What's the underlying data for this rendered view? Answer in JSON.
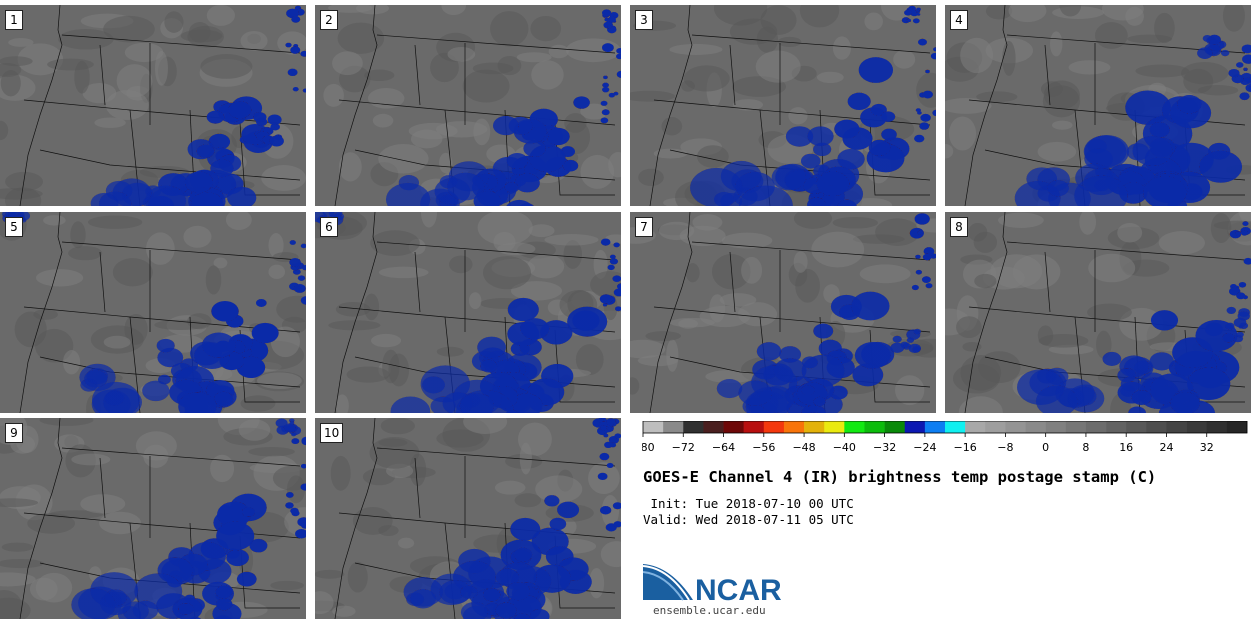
{
  "panels": [
    {
      "label": "1",
      "blobs": [
        [
          0.78,
          0.6,
          0.1,
          0.22,
          2.0
        ],
        [
          0.7,
          0.82,
          0.13,
          0.2,
          1.6
        ],
        [
          0.6,
          0.95,
          0.12,
          0.12,
          1.8
        ],
        [
          0.45,
          0.95,
          0.14,
          0.08,
          1.0
        ],
        [
          0.97,
          0.2,
          0.04,
          0.3,
          2.2
        ],
        [
          0.88,
          0.62,
          0.05,
          0.08,
          2.1
        ]
      ]
    },
    {
      "label": "2",
      "blobs": [
        [
          0.78,
          0.65,
          0.12,
          0.25,
          2.1
        ],
        [
          0.65,
          0.75,
          0.12,
          0.22,
          1.5
        ],
        [
          0.62,
          0.95,
          0.1,
          0.1,
          1.8
        ],
        [
          0.4,
          0.92,
          0.14,
          0.1,
          1.0
        ],
        [
          0.97,
          0.4,
          0.04,
          0.25,
          2.2
        ],
        [
          0.96,
          0.08,
          0.03,
          0.06,
          2.3
        ]
      ]
    },
    {
      "label": "3",
      "blobs": [
        [
          0.78,
          0.55,
          0.12,
          0.3,
          2.0
        ],
        [
          0.62,
          0.8,
          0.14,
          0.2,
          1.4
        ],
        [
          0.63,
          0.94,
          0.11,
          0.1,
          1.9
        ],
        [
          0.4,
          0.92,
          0.18,
          0.1,
          1.0
        ],
        [
          0.97,
          0.45,
          0.04,
          0.35,
          2.3
        ],
        [
          0.92,
          0.05,
          0.03,
          0.05,
          2.2
        ]
      ]
    },
    {
      "label": "4",
      "blobs": [
        [
          0.78,
          0.65,
          0.16,
          0.25,
          1.8
        ],
        [
          0.6,
          0.8,
          0.14,
          0.2,
          1.2
        ],
        [
          0.7,
          0.95,
          0.14,
          0.12,
          1.9
        ],
        [
          0.4,
          0.9,
          0.18,
          0.08,
          1.0
        ],
        [
          0.97,
          0.3,
          0.04,
          0.2,
          2.0
        ],
        [
          0.88,
          0.2,
          0.05,
          0.06,
          1.5
        ]
      ]
    },
    {
      "label": "5",
      "blobs": [
        [
          0.8,
          0.6,
          0.1,
          0.22,
          2.3
        ],
        [
          0.62,
          0.75,
          0.12,
          0.15,
          1.5
        ],
        [
          0.65,
          0.95,
          0.12,
          0.08,
          1.8
        ],
        [
          0.4,
          0.88,
          0.15,
          0.1,
          1.0
        ],
        [
          0.97,
          0.3,
          0.04,
          0.2,
          2.1
        ],
        [
          0.05,
          0.03,
          0.05,
          0.03,
          1.1
        ]
      ]
    },
    {
      "label": "6",
      "blobs": [
        [
          0.78,
          0.58,
          0.14,
          0.3,
          1.9
        ],
        [
          0.6,
          0.78,
          0.12,
          0.22,
          1.4
        ],
        [
          0.67,
          0.94,
          0.12,
          0.12,
          1.9
        ],
        [
          0.42,
          0.92,
          0.18,
          0.1,
          1.0
        ],
        [
          0.97,
          0.25,
          0.04,
          0.3,
          2.2
        ],
        [
          0.05,
          0.02,
          0.05,
          0.03,
          1.1
        ]
      ]
    },
    {
      "label": "7",
      "blobs": [
        [
          0.72,
          0.65,
          0.12,
          0.25,
          1.8
        ],
        [
          0.55,
          0.82,
          0.14,
          0.18,
          1.4
        ],
        [
          0.62,
          0.95,
          0.1,
          0.1,
          1.9
        ],
        [
          0.38,
          0.92,
          0.15,
          0.1,
          1.0
        ],
        [
          0.96,
          0.2,
          0.05,
          0.3,
          2.3
        ],
        [
          0.9,
          0.65,
          0.05,
          0.08,
          1.6
        ]
      ]
    },
    {
      "label": "8",
      "blobs": [
        [
          0.8,
          0.7,
          0.14,
          0.25,
          2.0
        ],
        [
          0.62,
          0.8,
          0.12,
          0.18,
          1.4
        ],
        [
          0.72,
          0.95,
          0.14,
          0.1,
          1.8
        ],
        [
          0.4,
          0.88,
          0.16,
          0.08,
          1.0
        ],
        [
          0.97,
          0.25,
          0.04,
          0.25,
          2.3
        ],
        [
          0.95,
          0.55,
          0.04,
          0.1,
          1.7
        ]
      ]
    },
    {
      "label": "9",
      "blobs": [
        [
          0.78,
          0.62,
          0.12,
          0.25,
          2.0
        ],
        [
          0.62,
          0.8,
          0.12,
          0.18,
          1.5
        ],
        [
          0.68,
          0.94,
          0.1,
          0.1,
          1.9
        ],
        [
          0.4,
          0.92,
          0.15,
          0.08,
          1.0
        ],
        [
          0.97,
          0.35,
          0.04,
          0.3,
          2.2
        ],
        [
          0.95,
          0.05,
          0.04,
          0.05,
          1.6
        ]
      ]
    },
    {
      "label": "10",
      "blobs": [
        [
          0.78,
          0.6,
          0.14,
          0.3,
          1.9
        ],
        [
          0.62,
          0.82,
          0.14,
          0.18,
          1.4
        ],
        [
          0.65,
          0.94,
          0.12,
          0.1,
          1.8
        ],
        [
          0.42,
          0.92,
          0.15,
          0.1,
          1.0
        ],
        [
          0.97,
          0.3,
          0.04,
          0.4,
          2.3
        ],
        [
          0.95,
          0.05,
          0.04,
          0.05,
          2.2
        ]
      ]
    }
  ],
  "colorbar": {
    "colors": [
      "#bebebe",
      "#8a8a8a",
      "#303030",
      "#4a1f1f",
      "#6e0808",
      "#b80f0f",
      "#f4380d",
      "#f8740a",
      "#e3b20b",
      "#eaea10",
      "#12ea12",
      "#0cbc0c",
      "#098a09",
      "#0c18b2",
      "#0d7ef2",
      "#10f0f0",
      "#a8a8a8",
      "#9e9e9e",
      "#949494",
      "#8a8a8a",
      "#808080",
      "#767676",
      "#6c6c6c",
      "#626262",
      "#585858",
      "#4e4e4e",
      "#444444",
      "#3a3a3a",
      "#303030",
      "#262626"
    ],
    "ticks": [
      "−80",
      "−72",
      "−64",
      "−56",
      "−48",
      "−40",
      "−32",
      "−24",
      "−16",
      "−8",
      "0",
      "8",
      "16",
      "24",
      "32"
    ]
  },
  "title": "GOES-E Channel 4 (IR) brightness temp postage stamp (C)",
  "init": " Init: Tue 2018-07-10 00 UTC",
  "valid": "Valid: Wed 2018-07-11 05 UTC",
  "logo_text": "NCAR",
  "site": "ensemble.ucar.edu",
  "colors": {
    "map_background": "#6a6a6a",
    "terrain_light": "#7e7e7e",
    "terrain_dark": "#5a5a5a",
    "boundaries": "#111111",
    "logo_blue": "#1a5fa0"
  }
}
